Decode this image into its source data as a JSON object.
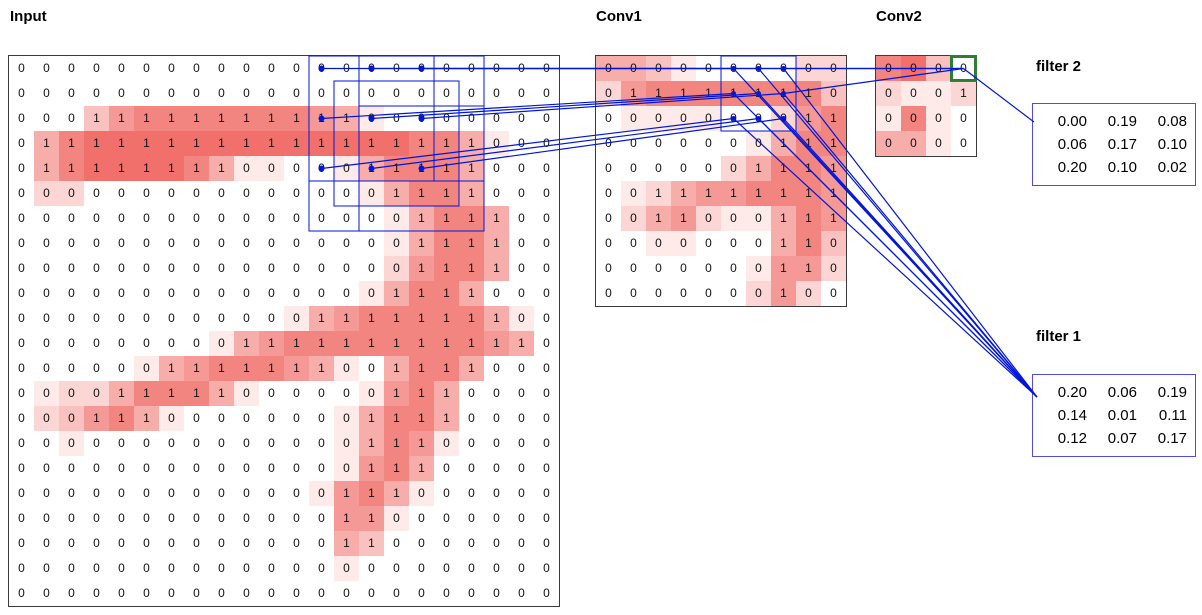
{
  "labels": {
    "input": "Input",
    "conv1": "Conv1",
    "conv2": "Conv2",
    "filter1": "filter 1",
    "filter2": "filter 2"
  },
  "colors": {
    "line_blue": "#0016d9",
    "heat_red": "#ec3e38",
    "highlight_green": "#2e7d32",
    "grid_border": "#3a3a3a",
    "filter_border": "#4d4ddb"
  },
  "grids": {
    "input": {
      "rows": 22,
      "cols": 22,
      "values": [
        "0 0 0 0 0 0 0 0 0 0 0 0 0 0 0 0 0 0 0 0 0 0",
        "0 0 0 0 0 0 0 0 0 0 0 0 0 0 0 0 0 0 0 0 0 0",
        "0 0 0 1 1 1 1 1 1 1 1 1 1 1 0 0 0 0 0 0 0 0",
        "0 1 1 1 1 1 1 1 1 1 1 1 1 1 1 1 1 1 1 0 0 0",
        "0 1 1 1 1 1 1 1 1 0 0 0 0 0 1 1 1 1 1 0 0 0",
        "0 0 0 0 0 0 0 0 0 0 0 0 0 0 0 1 1 1 1 0 0 0",
        "0 0 0 0 0 0 0 0 0 0 0 0 0 0 0 0 1 1 1 1 0 0",
        "0 0 0 0 0 0 0 0 0 0 0 0 0 0 0 0 1 1 1 1 0 0",
        "0 0 0 0 0 0 0 0 0 0 0 0 0 0 0 0 1 1 1 1 0 0",
        "0 0 0 0 0 0 0 0 0 0 0 0 0 0 0 1 1 1 1 0 0 0",
        "0 0 0 0 0 0 0 0 0 0 0 0 1 1 1 1 1 1 1 1 0 0",
        "0 0 0 0 0 0 0 0 0 1 1 1 1 1 1 1 1 1 1 1 1 0",
        "0 0 0 0 0 0 1 1 1 1 1 1 1 0 0 1 1 1 1 0 0 0",
        "0 0 0 0 1 1 1 1 1 0 0 0 0 0 0 1 1 1 0 0 0 0",
        "0 0 0 1 1 1 0 0 0 0 0 0 0 0 1 1 1 1 0 0 0 0",
        "0 0 0 0 0 0 0 0 0 0 0 0 0 0 1 1 1 0 0 0 0 0",
        "0 0 0 0 0 0 0 0 0 0 0 0 0 0 1 1 1 0 0 0 0 0",
        "0 0 0 0 0 0 0 0 0 0 0 0 0 1 1 1 0 0 0 0 0 0",
        "0 0 0 0 0 0 0 0 0 0 0 0 0 1 1 0 0 0 0 0 0 0",
        "0 0 0 0 0 0 0 0 0 0 0 0 0 1 1 0 0 0 0 0 0 0",
        "0 0 0 0 0 0 0 0 0 0 0 0 0 0 0 0 0 0 0 0 0 0",
        "0 0 0 0 0 0 0 0 0 0 0 0 0 0 0 0 0 0 0 0 0 0"
      ],
      "heat": [
        "0000000000000000000000",
        "0000000000000000000000",
        "0003566666665410000000",
        "0467777777777777664100",
        "0467777641100146664000",
        "0220000000000014664000",
        "0000000000000001466400",
        "0000000000000001466400",
        "0000000000000002566400",
        "0000000000000014664000",
        "0000000000014566666410",
        "0000000014566666666540",
        "0000014566654104664000",
        "0122466641000015640000",
        "0235641000000146640000",
        "0010000000000146510000",
        "0000000000000156400000",
        "0000000000001564100000",
        "0000000000000551000000",
        "0000000000000430000000",
        "0000000000000100000000",
        "0000000000000000000000"
      ]
    },
    "conv1": {
      "rows": 10,
      "cols": 10,
      "values": [
        "0 0 0 0 0 0 0 0 0 0",
        "0 1 1 1 1 1 1 1 1 0",
        "0 0 0 0 0 0 0 0 1 1",
        "0 0 0 0 0 0 0 1 1 1",
        "0 0 0 0 0 0 1 1 1 1",
        "0 0 1 1 1 1 1 1 1 1",
        "0 0 1 1 0 0 0 1 1 1",
        "0 0 0 0 0 0 0 1 1 0",
        "0 0 0 0 0 0 0 1 1 0",
        "0 0 0 0 0 0 0 1 0 0"
      ],
      "heat": [
        "4431000022",
        "2566666663",
        "0111100256",
        "0000001466",
        "0000024665",
        "0124556665",
        "0245211465",
        "0011000463",
        "0000001552",
        "0000002520"
      ]
    },
    "conv2": {
      "rows": 4,
      "cols": 4,
      "values": [
        "0 0 0 0",
        "0 0 0 1",
        "0 0 0 0",
        "0 0 0 0"
      ],
      "heat": [
        "6730",
        "2112",
        "1610",
        "4410"
      ],
      "highlight": {
        "row": 0,
        "col": 3
      }
    }
  },
  "filters": {
    "filter2": {
      "label": "filter 2",
      "values": [
        [
          "0.00",
          "0.19",
          "0.08"
        ],
        [
          "0.06",
          "0.17",
          "0.10"
        ],
        [
          "0.20",
          "0.10",
          "0.02"
        ]
      ]
    },
    "filter1": {
      "label": "filter 1",
      "values": [
        [
          "0.20",
          "0.06",
          "0.19"
        ],
        [
          "0.14",
          "0.01",
          "0.11"
        ],
        [
          "0.12",
          "0.07",
          "0.17"
        ]
      ]
    }
  },
  "connections": {
    "input_region": {
      "col": 12,
      "row": 0,
      "cols": 7,
      "rows": 7
    },
    "input_subwindows": [
      [
        12,
        0
      ],
      [
        14,
        0
      ],
      [
        13,
        1
      ],
      [
        14,
        2
      ]
    ],
    "window_size": 5,
    "samples": [
      {
        "input": [
          0,
          12
        ],
        "conv1": [
          0,
          5
        ]
      },
      {
        "input": [
          0,
          14
        ],
        "conv1": [
          0,
          6
        ]
      },
      {
        "input": [
          0,
          16
        ],
        "conv1": [
          0,
          7
        ]
      },
      {
        "input": [
          2,
          12
        ],
        "conv1": [
          1,
          5
        ]
      },
      {
        "input": [
          2,
          14
        ],
        "conv1": [
          1,
          6
        ]
      },
      {
        "input": [
          2,
          16
        ],
        "conv1": [
          1,
          7
        ]
      },
      {
        "input": [
          4,
          12
        ],
        "conv1": [
          2,
          5
        ]
      },
      {
        "input": [
          4,
          14
        ],
        "conv1": [
          2,
          6
        ]
      },
      {
        "input": [
          4,
          16
        ],
        "conv1": [
          2,
          7
        ]
      }
    ],
    "conv1_region": {
      "col": 5,
      "row": 0,
      "cols": 3,
      "rows": 3
    },
    "conv1_to_conv2": [
      [
        0,
        6
      ],
      [
        0,
        7
      ],
      [
        1,
        7
      ]
    ],
    "conv2_target": {
      "row": 0,
      "col": 3
    }
  }
}
